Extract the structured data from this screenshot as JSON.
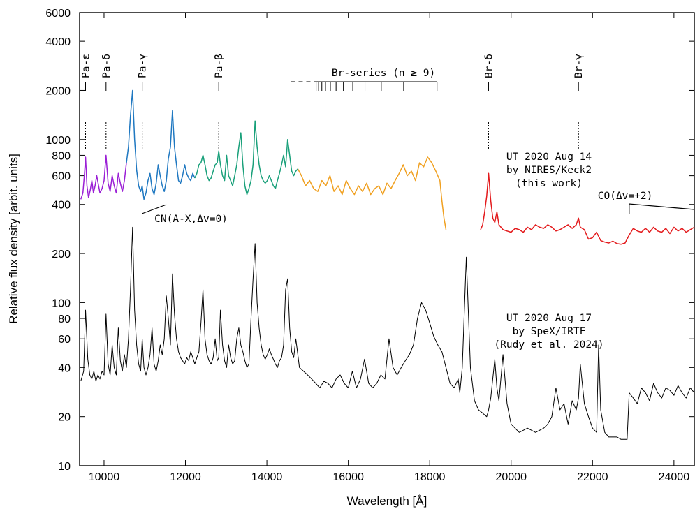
{
  "chart_data": {
    "type": "line",
    "xlabel": "Wavelength [Å]",
    "ylabel": "Relative flux density [arbit. units]",
    "xlim": [
      9400,
      24500
    ],
    "ylim": [
      10,
      6000
    ],
    "yscale": "log",
    "grid": false,
    "x_ticks": [
      "10000",
      "12000",
      "14000",
      "16000",
      "18000",
      "20000",
      "22000",
      "24000"
    ],
    "y_ticks": [
      "10",
      "20",
      "40",
      "60",
      "80",
      "100",
      "200",
      "400",
      "600",
      "800",
      "1000",
      "2000",
      "4000",
      "6000"
    ],
    "line_ids": [
      {
        "label": "Pa-ε",
        "x": 9546
      },
      {
        "label": "Pa-δ",
        "x": 10049
      },
      {
        "label": "Pa-γ",
        "x": 10938
      },
      {
        "label": "Pa-β",
        "x": 12818
      },
      {
        "label": "Br-δ",
        "x": 19446
      },
      {
        "label": "Br-γ",
        "x": 21655
      }
    ],
    "br_series": {
      "label": "Br-series (n ≥ 9)",
      "range": [
        14590,
        18180
      ],
      "ticks": [
        15210,
        15270,
        15350,
        15440,
        15560,
        15700,
        15880,
        16110,
        16410,
        16810,
        17360,
        18180
      ]
    },
    "annotations": [
      {
        "text": "CN(A-X,Δv=0)",
        "x": 10930
      },
      {
        "text": "CO(Δv=+2)",
        "x": 22900
      }
    ],
    "spectra_labels": [
      [
        "UT 2020 Aug 14",
        "by NIRES/Keck2",
        "(this work)"
      ],
      [
        "UT 2020 Aug 17",
        "by SpeX/IRTF",
        "(Rudy et al. 2024)"
      ]
    ],
    "series": [
      {
        "color": "#9b1fd6",
        "x": [
          9430,
          9480,
          9520,
          9546,
          9580,
          9620,
          9660,
          9700,
          9740,
          9780,
          9820,
          9860,
          9900,
          9950,
          10000,
          10049,
          10100,
          10150,
          10200,
          10250,
          10300,
          10350,
          10400,
          10450,
          10500,
          10550
        ],
        "y": [
          430,
          470,
          620,
          780,
          520,
          440,
          490,
          560,
          470,
          520,
          600,
          530,
          470,
          500,
          560,
          800,
          540,
          480,
          600,
          520,
          470,
          620,
          540,
          480,
          560,
          720
        ]
      },
      {
        "color": "#1f78c1",
        "x": [
          10550,
          10600,
          10650,
          10700,
          10750,
          10800,
          10850,
          10900,
          10938,
          10980,
          11030,
          11080,
          11130,
          11180,
          11230,
          11280,
          11330,
          11380,
          11430,
          11480,
          11530,
          11580,
          11630,
          11680,
          11730,
          11780,
          11830,
          11880,
          11930,
          11980,
          12030,
          12080,
          12130,
          12180,
          12230
        ],
        "y": [
          720,
          900,
          1400,
          2000,
          1000,
          650,
          520,
          480,
          520,
          430,
          470,
          560,
          620,
          500,
          460,
          540,
          700,
          600,
          520,
          480,
          560,
          760,
          900,
          1500,
          900,
          700,
          560,
          540,
          600,
          700,
          620,
          580,
          560,
          620,
          580
        ]
      },
      {
        "color": "#19a07a",
        "x": [
          12230,
          12280,
          12330,
          12380,
          12430,
          12480,
          12530,
          12580,
          12630,
          12680,
          12730,
          12780,
          12818,
          12860,
          12910,
          12960,
          13010,
          13060,
          13110,
          13160,
          13210,
          13260,
          13310,
          13360,
          13410,
          13460,
          13510,
          13560,
          13610,
          13660,
          13710,
          13760,
          13810,
          13860,
          13910,
          13960,
          14010,
          14060,
          14110,
          14160,
          14210,
          14260,
          14310,
          14360,
          14410,
          14460,
          14510,
          14560,
          14610,
          14660,
          14710,
          14760
        ],
        "y": [
          580,
          620,
          700,
          720,
          800,
          700,
          600,
          560,
          580,
          640,
          700,
          720,
          850,
          700,
          600,
          560,
          800,
          600,
          560,
          520,
          600,
          700,
          900,
          1100,
          700,
          520,
          460,
          500,
          560,
          700,
          1300,
          900,
          700,
          600,
          560,
          540,
          560,
          600,
          560,
          520,
          500,
          560,
          620,
          700,
          800,
          680,
          1000,
          800,
          640,
          600,
          640,
          660
        ]
      },
      {
        "color": "#f0a020",
        "x": [
          14760,
          14850,
          14950,
          15050,
          15150,
          15250,
          15350,
          15450,
          15550,
          15650,
          15750,
          15850,
          15950,
          16050,
          16150,
          16250,
          16350,
          16450,
          16550,
          16650,
          16750,
          16850,
          16950,
          17050,
          17150,
          17250,
          17350,
          17450,
          17550,
          17650,
          17750,
          17850,
          17950,
          18050,
          18150,
          18250,
          18300,
          18350,
          18400
        ],
        "y": [
          660,
          600,
          520,
          560,
          500,
          480,
          560,
          520,
          600,
          480,
          520,
          460,
          560,
          500,
          460,
          520,
          480,
          540,
          460,
          500,
          520,
          460,
          540,
          500,
          560,
          620,
          700,
          600,
          640,
          560,
          720,
          680,
          780,
          720,
          640,
          560,
          420,
          330,
          280
        ]
      },
      {
        "color": "#e31a1c",
        "x": [
          19250,
          19300,
          19350,
          19400,
          19446,
          19500,
          19550,
          19600,
          19650,
          19700,
          19750,
          19800,
          19900,
          20000,
          20100,
          20200,
          20300,
          20400,
          20500,
          20600,
          20700,
          20800,
          20900,
          21000,
          21100,
          21200,
          21300,
          21400,
          21500,
          21600,
          21655,
          21700,
          21800,
          21900,
          22000,
          22100,
          22150,
          22200,
          22300,
          22400,
          22500,
          22600,
          22700,
          22800,
          22900,
          23000,
          23100,
          23200,
          23300,
          23400,
          23500,
          23600,
          23700,
          23800,
          23900,
          24000,
          24100,
          24200,
          24300,
          24400,
          24500
        ],
        "y": [
          280,
          300,
          360,
          450,
          620,
          420,
          330,
          310,
          360,
          300,
          290,
          280,
          275,
          270,
          285,
          280,
          270,
          290,
          280,
          300,
          290,
          285,
          300,
          290,
          275,
          280,
          290,
          300,
          285,
          300,
          330,
          290,
          280,
          245,
          250,
          270,
          255,
          240,
          235,
          232,
          238,
          230,
          228,
          232,
          260,
          285,
          275,
          270,
          285,
          270,
          290,
          275,
          270,
          285,
          265,
          290,
          275,
          285,
          270,
          280,
          290
        ]
      },
      {
        "color": "#000000",
        "x": [
          9430,
          9500,
          9546,
          9600,
          9650,
          9700,
          9750,
          9800,
          9850,
          9900,
          9950,
          10000,
          10049,
          10100,
          10150,
          10200,
          10250,
          10300,
          10350,
          10400,
          10450,
          10500,
          10550,
          10600,
          10650,
          10700,
          10750,
          10800,
          10850,
          10900,
          10938,
          10980,
          11030,
          11080,
          11130,
          11180,
          11230,
          11280,
          11330,
          11380,
          11430,
          11480,
          11530,
          11580,
          11630,
          11680,
          11730,
          11780,
          11830,
          11880,
          11930,
          11980,
          12030,
          12080,
          12130,
          12180,
          12230,
          12280,
          12330,
          12380,
          12430,
          12480,
          12530,
          12580,
          12630,
          12680,
          12730,
          12780,
          12818,
          12860,
          12910,
          12960,
          13010,
          13060,
          13110,
          13160,
          13210,
          13260,
          13310,
          13360,
          13410,
          13460,
          13510,
          13560,
          13610,
          13660,
          13710,
          13760,
          13810,
          13860,
          13910,
          13960,
          14010,
          14060,
          14110,
          14160,
          14210,
          14260,
          14310,
          14360,
          14410,
          14460,
          14510,
          14560,
          14610,
          14660,
          14710,
          14760,
          14800,
          14900,
          15000,
          15100,
          15200,
          15300,
          15400,
          15500,
          15600,
          15700,
          15800,
          15900,
          16000,
          16100,
          16200,
          16300,
          16400,
          16500,
          16600,
          16700,
          16800,
          16900,
          17000,
          17100,
          17200,
          17300,
          17400,
          17500,
          17600,
          17700,
          17800,
          17900,
          18000,
          18100,
          18200,
          18300,
          18400,
          18500,
          18600,
          18700,
          18740,
          18800,
          18900,
          19000,
          19100,
          19200,
          19300,
          19400,
          19446,
          19500,
          19600,
          19650,
          19700,
          19800,
          19900,
          20000,
          20200,
          20400,
          20600,
          20800,
          20900,
          21000,
          21100,
          21200,
          21300,
          21400,
          21500,
          21600,
          21655,
          21700,
          21800,
          21900,
          22000,
          22100,
          22150,
          22200,
          22300,
          22400,
          22500,
          22600,
          22700,
          22800,
          22850,
          22900,
          23000,
          23100,
          23200,
          23300,
          23400,
          23500,
          23600,
          23700,
          23800,
          23900,
          24000,
          24100,
          24200,
          24300,
          24400,
          24500
        ],
        "y": [
          33,
          38,
          90,
          45,
          36,
          34,
          38,
          33,
          36,
          34,
          38,
          36,
          85,
          42,
          36,
          55,
          40,
          36,
          70,
          44,
          38,
          48,
          40,
          60,
          120,
          290,
          90,
          55,
          42,
          38,
          60,
          40,
          36,
          40,
          48,
          70,
          42,
          38,
          44,
          55,
          48,
          60,
          110,
          80,
          55,
          150,
          85,
          60,
          50,
          46,
          44,
          42,
          46,
          44,
          50,
          46,
          42,
          46,
          50,
          75,
          120,
          60,
          48,
          44,
          42,
          46,
          60,
          44,
          46,
          90,
          55,
          44,
          40,
          55,
          46,
          42,
          44,
          60,
          70,
          55,
          50,
          44,
          40,
          42,
          80,
          140,
          230,
          100,
          70,
          55,
          48,
          45,
          48,
          52,
          48,
          45,
          42,
          40,
          44,
          46,
          55,
          120,
          140,
          70,
          50,
          46,
          60,
          48,
          40,
          38,
          36,
          34,
          32,
          30,
          33,
          32,
          30,
          34,
          36,
          32,
          30,
          38,
          30,
          34,
          45,
          32,
          30,
          32,
          36,
          34,
          60,
          40,
          36,
          40,
          44,
          48,
          55,
          80,
          100,
          90,
          75,
          62,
          55,
          50,
          40,
          32,
          30,
          34,
          28,
          40,
          190,
          40,
          25,
          22,
          21,
          20,
          22,
          26,
          45,
          30,
          25,
          48,
          24,
          18,
          16,
          17,
          16,
          17,
          18,
          20,
          30,
          22,
          24,
          18,
          25,
          22,
          26,
          42,
          24,
          20,
          17,
          16,
          55,
          22,
          16,
          15,
          15,
          15,
          14.5,
          14.5,
          14.5,
          28,
          26,
          24,
          30,
          28,
          25,
          32,
          28,
          26,
          30,
          29,
          27,
          31,
          28,
          26,
          30,
          28
        ]
      }
    ]
  }
}
